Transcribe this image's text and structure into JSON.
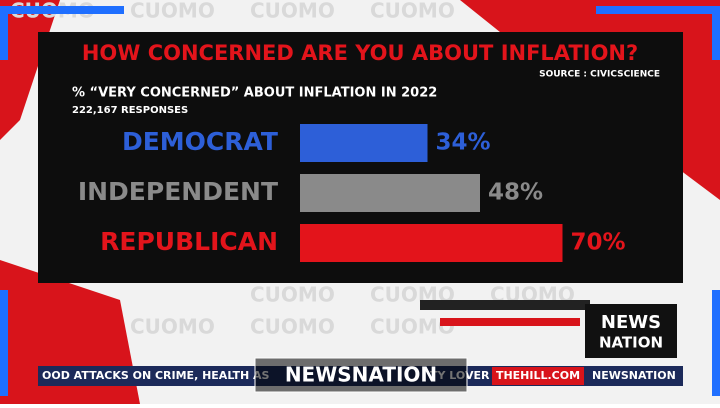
{
  "chart_data": {
    "type": "hbar",
    "title": "HOW CONCERNED ARE YOU ABOUT INFLATION?",
    "source": "SOURCE : CIVICSCIENCE",
    "subtitle": "% “VERY CONCERNED” ABOUT INFLATION IN 2022",
    "note": "222,167 RESPONSES",
    "categories": [
      "DEMOCRAT",
      "INDEPENDENT",
      "REPUBLICAN"
    ],
    "values": [
      34,
      48,
      70
    ],
    "value_labels": [
      "34%",
      "48%",
      "70%"
    ],
    "colors": [
      "#2d5fd8",
      "#8a8a8a",
      "#e3141b"
    ]
  },
  "screen": {
    "watermark": "CUOMO",
    "logo": [
      "NEWS",
      "NATION"
    ],
    "ticker": "OOD ATTACKS ON CRIME, HEALTH AS",
    "ticker_mid": "TY LOVER",
    "ticker_site": "THEHILL.COM",
    "ticker_end": "NEWSNATION",
    "bug": "NEWSNATION"
  }
}
